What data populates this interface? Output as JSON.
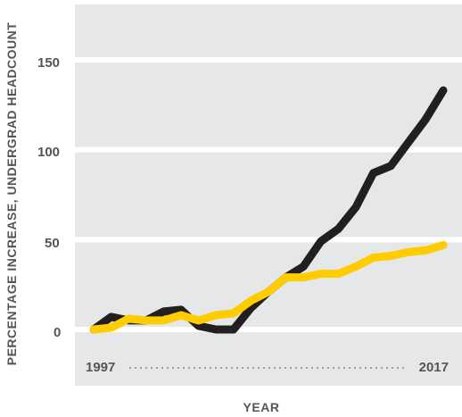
{
  "chart_data": {
    "type": "line",
    "xlabel": "YEAR",
    "ylabel": "PERCENTAGE INCREASE, UNDERGRAD HEADCOUNT",
    "x": [
      1997,
      1998,
      1999,
      2000,
      2001,
      2002,
      2003,
      2004,
      2005,
      2006,
      2007,
      2008,
      2009,
      2010,
      2011,
      2012,
      2013,
      2014,
      2015,
      2016,
      2017
    ],
    "x_tick_labels": [
      "1997",
      "2017"
    ],
    "y_ticks": [
      0,
      50,
      100,
      150
    ],
    "y_tick_labels": [
      "0",
      "50",
      "100",
      "150"
    ],
    "ylim": [
      -30,
      180
    ],
    "grid": true,
    "series": [
      {
        "color": "#231f20",
        "values": [
          0,
          7,
          5,
          5,
          10,
          11,
          2,
          0,
          0,
          12,
          21,
          29,
          35,
          49,
          56,
          68,
          87,
          91,
          104,
          117,
          133
        ]
      },
      {
        "color": "#ffcc00",
        "values": [
          0,
          1,
          6,
          5,
          5,
          8,
          5,
          8,
          9,
          16,
          21,
          29,
          29,
          31,
          31,
          35,
          40,
          41,
          43,
          44,
          47
        ]
      }
    ]
  }
}
